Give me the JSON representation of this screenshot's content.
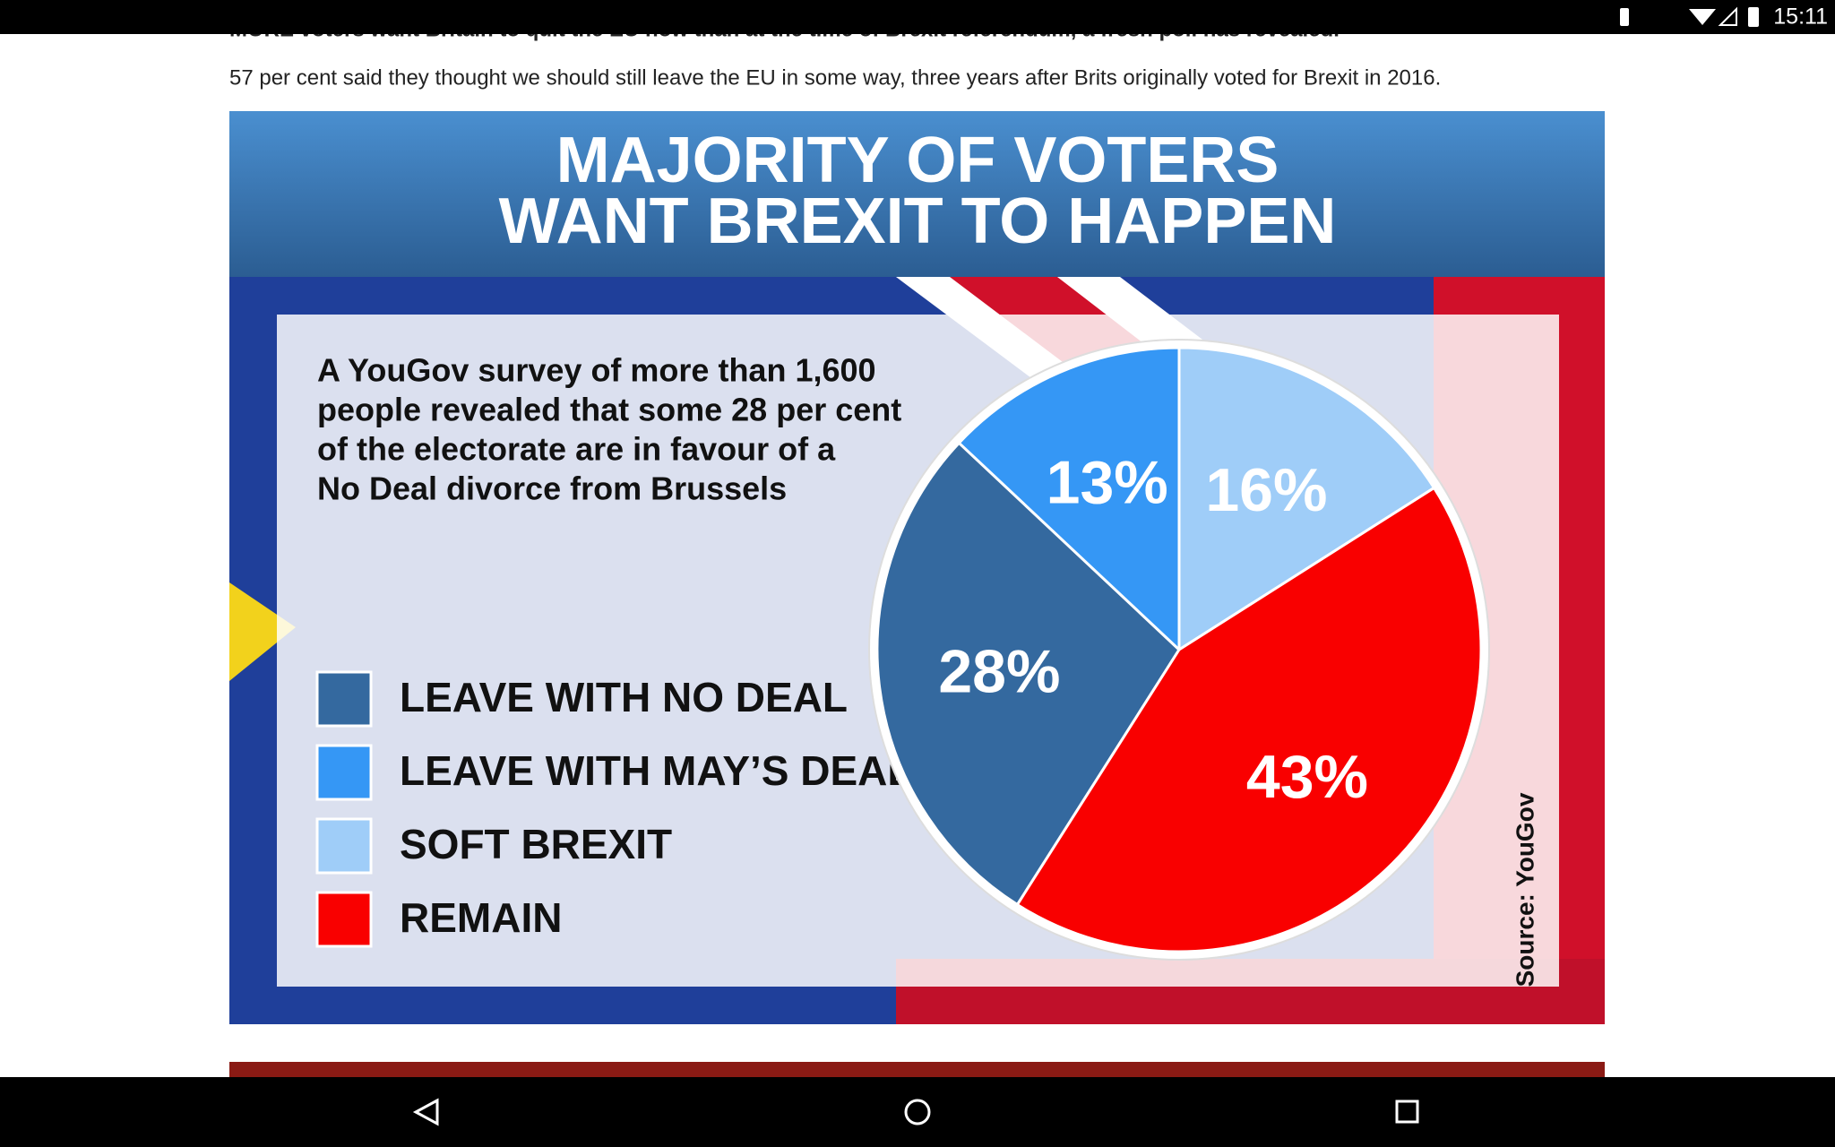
{
  "status_bar": {
    "time": "15:11"
  },
  "article": {
    "headline": "MORE voters want Britain to quit the EU now than at the time of Brexit referendum, a fresh poll has revealed.",
    "paragraph": "57 per cent said they thought we should still leave the EU in some way, three years after Brits originally voted for Brexit in 2016."
  },
  "chart_data": {
    "type": "pie",
    "title": [
      "MAJORITY OF VOTERS",
      "WANT BREXIT TO HAPPEN"
    ],
    "subtitle": [
      "A YouGov survey of more than 1,600",
      "people revealed that some 28 per cent",
      "of the electorate are in favour of a",
      "No Deal divorce from Brussels"
    ],
    "categories": [
      "LEAVE WITH NO DEAL",
      "LEAVE WITH MAY’S DEAL",
      "SOFT BREXIT",
      "REMAIN"
    ],
    "values": [
      28,
      13,
      16,
      43
    ],
    "value_labels": [
      "28%",
      "13%",
      "16%",
      "43%"
    ],
    "colors": [
      "#34699f",
      "#3597f5",
      "#9fcdf8",
      "#f90000"
    ],
    "source": "Source: YouGov"
  }
}
